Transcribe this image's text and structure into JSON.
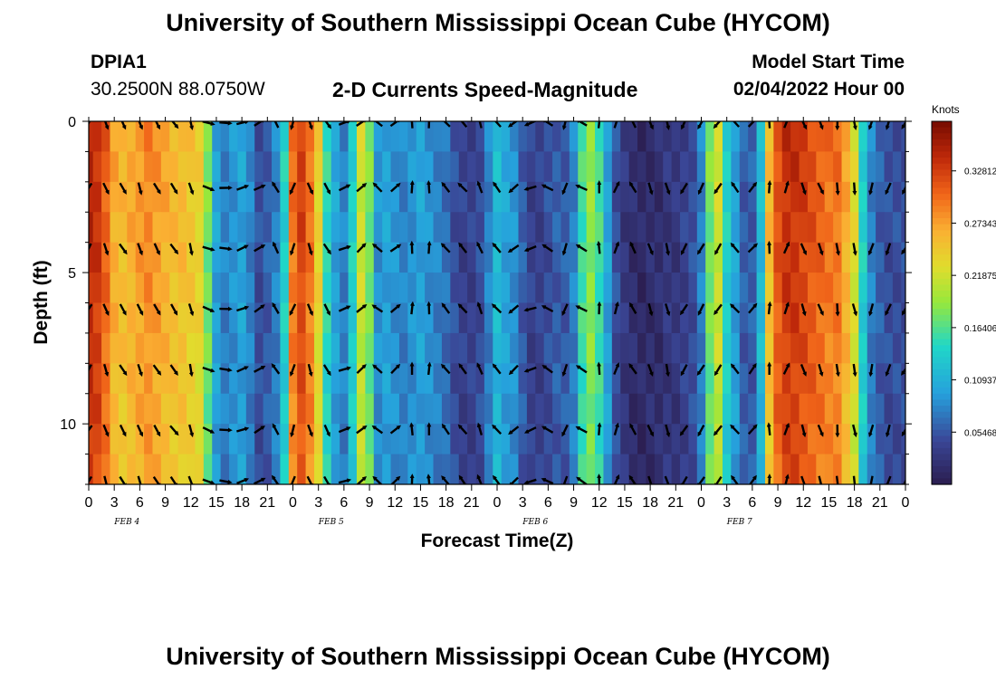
{
  "page": {
    "title": "University of Southern Mississippi Ocean Cube (HYCOM)",
    "title_repeat": "University of Southern Mississippi Ocean Cube (HYCOM)"
  },
  "header": {
    "station_id": "DPIA1",
    "coordinates": "30.2500N  88.0750W",
    "chart_title": "2-D Currents Speed-Magnitude",
    "model_start_label": "Model Start Time",
    "model_start_value": "02/04/2022 Hour 00"
  },
  "colors": {
    "low": "#2b1d4f",
    "high": "#7a0b00",
    "arrow": "#000000",
    "axis": "#000000"
  },
  "chart_data": {
    "type": "heatmap",
    "title": "2-D Currents Speed-Magnitude",
    "xlabel": "Forecast Time(Z)",
    "ylabel": "Depth (ft)",
    "units": "Knots",
    "x_tick_labels": [
      "0",
      "3",
      "6",
      "9",
      "12",
      "15",
      "18",
      "21",
      "0",
      "3",
      "6",
      "9",
      "12",
      "15",
      "18",
      "21",
      "0",
      "3",
      "6",
      "9",
      "12",
      "15",
      "18",
      "21",
      "0",
      "3",
      "6",
      "9",
      "12",
      "15",
      "18",
      "21",
      "0"
    ],
    "day_labels": [
      "FEB 4",
      "FEB 5",
      "FEB 6",
      "FEB 7"
    ],
    "x_range_hours": [
      0,
      96
    ],
    "y_range_ft": [
      0,
      12
    ],
    "y_tick_labels": [
      "0",
      "5",
      "10"
    ],
    "y_ticks": [
      0,
      5,
      10
    ],
    "colorbar_ticks": [
      "0.05468",
      "0.10937",
      "0.16406",
      "0.21875",
      "0.27343",
      "0.32812"
    ],
    "colorbar_tick_values": [
      0.05468,
      0.10937,
      0.16406,
      0.21875,
      0.27343,
      0.32812
    ],
    "color_range": [
      0.0,
      0.38
    ],
    "depth_rows_ft": [
      0.5,
      1.5,
      2.5,
      3.5,
      4.5,
      5.5,
      6.5,
      7.5,
      8.5,
      9.5,
      10.5,
      11.5
    ],
    "time_profile_hours": [
      0,
      1,
      2,
      3,
      4,
      5,
      6,
      7,
      8,
      9,
      10,
      11,
      12,
      13,
      14,
      15,
      16,
      17,
      18,
      19,
      20,
      21,
      22,
      23,
      24,
      25,
      26,
      27,
      28,
      29,
      30,
      31,
      32,
      33,
      34,
      35,
      36,
      37,
      38,
      39,
      40,
      41,
      42,
      43,
      44,
      45,
      46,
      47,
      48,
      49,
      50,
      51,
      52,
      53,
      54,
      55,
      56,
      57,
      58,
      59,
      60,
      61,
      62,
      63,
      64,
      65,
      66,
      67,
      68,
      69,
      70,
      71,
      72,
      73,
      74,
      75,
      76,
      77,
      78,
      79,
      80,
      81,
      82,
      83,
      84,
      85,
      86,
      87,
      88,
      89,
      90,
      91,
      92,
      93,
      94,
      95,
      96
    ],
    "speed_profile_knots": [
      0.35,
      0.34,
      0.31,
      0.27,
      0.26,
      0.27,
      0.28,
      0.29,
      0.28,
      0.27,
      0.26,
      0.26,
      0.25,
      0.24,
      0.18,
      0.1,
      0.08,
      0.09,
      0.1,
      0.08,
      0.05,
      0.06,
      0.08,
      0.14,
      0.3,
      0.33,
      0.3,
      0.24,
      0.15,
      0.1,
      0.08,
      0.14,
      0.22,
      0.18,
      0.09,
      0.1,
      0.09,
      0.08,
      0.09,
      0.1,
      0.09,
      0.08,
      0.07,
      0.05,
      0.04,
      0.04,
      0.05,
      0.08,
      0.12,
      0.1,
      0.09,
      0.06,
      0.04,
      0.04,
      0.05,
      0.06,
      0.06,
      0.08,
      0.16,
      0.19,
      0.16,
      0.1,
      0.05,
      0.03,
      0.02,
      0.015,
      0.02,
      0.02,
      0.03,
      0.03,
      0.04,
      0.05,
      0.08,
      0.18,
      0.22,
      0.14,
      0.1,
      0.06,
      0.06,
      0.12,
      0.26,
      0.32,
      0.34,
      0.34,
      0.33,
      0.32,
      0.31,
      0.3,
      0.3,
      0.27,
      0.23,
      0.14,
      0.08,
      0.06,
      0.05,
      0.05,
      0.05
    ],
    "arrow_times_hours": [
      0,
      2,
      4,
      6,
      8,
      10,
      12,
      14,
      16,
      18,
      20,
      22,
      24,
      26,
      28,
      30,
      32,
      34,
      36,
      38,
      40,
      42,
      44,
      46,
      48,
      50,
      52,
      54,
      56,
      58,
      60,
      62,
      64,
      66,
      68,
      70,
      72,
      74,
      76,
      78,
      80,
      82,
      84,
      86,
      88,
      90,
      92,
      94,
      96
    ],
    "arrow_depths_ft": [
      0.05,
      2.2,
      4.2,
      6.2,
      8.2,
      10.2,
      11.9
    ],
    "arrow_direction_deg": [
      210,
      160,
      150,
      160,
      150,
      145,
      165,
      110,
      95,
      70,
      60,
      330,
      200,
      160,
      150,
      70,
      50,
      310,
      50,
      0,
      0,
      320,
      320,
      340,
      320,
      230,
      250,
      300,
      200,
      300,
      0,
      20,
      330,
      160,
      165,
      210,
      210,
      215,
      320,
      40,
      0,
      20,
      160,
      160,
      175,
      170,
      195,
      200,
      210
    ]
  }
}
